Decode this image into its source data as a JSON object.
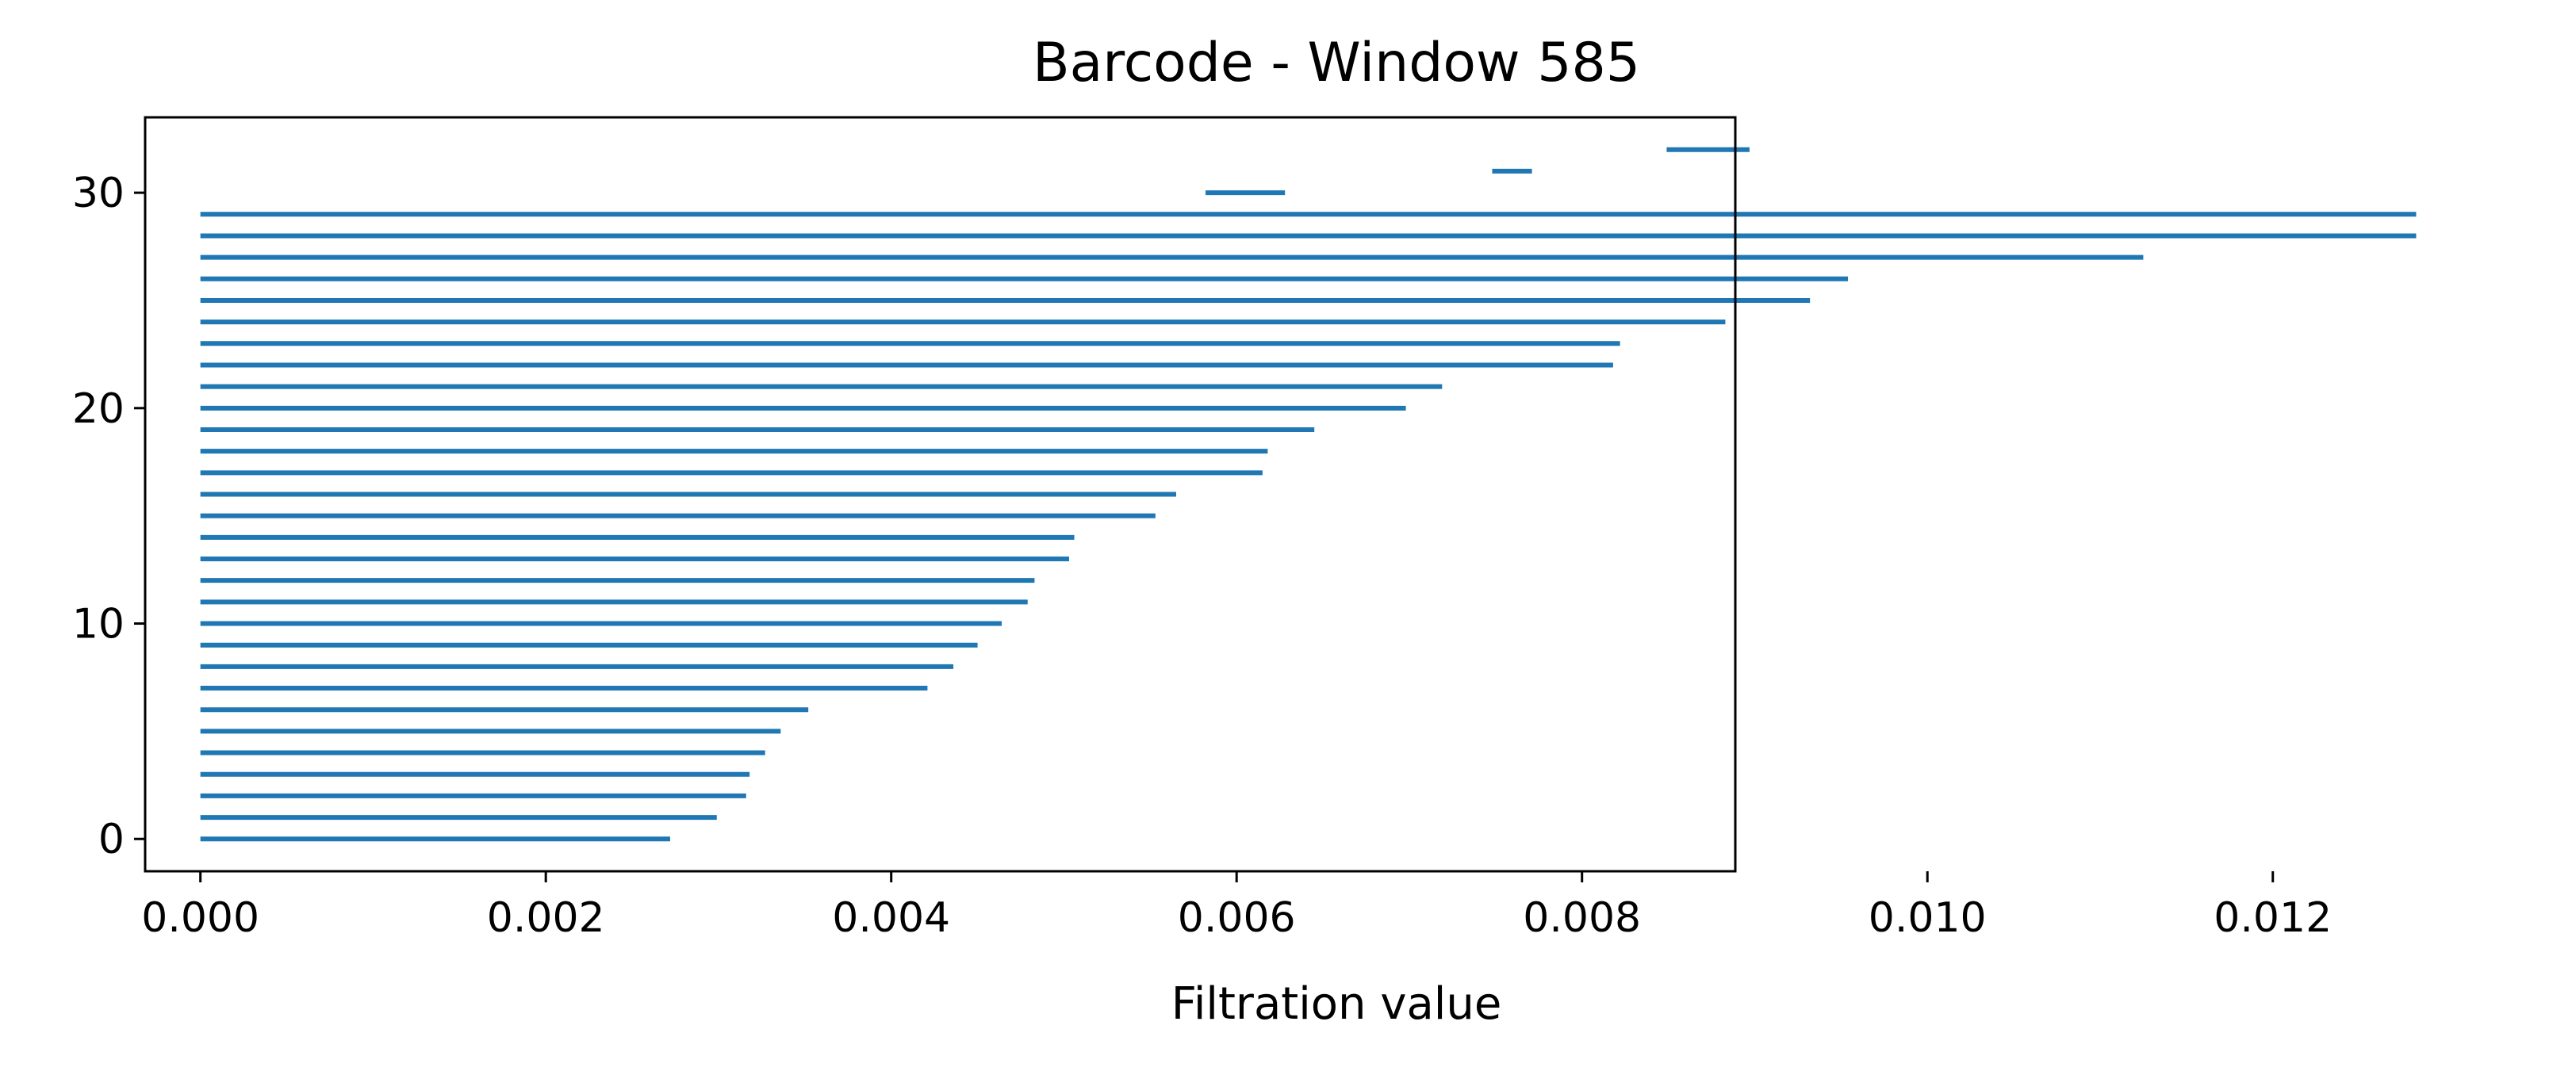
{
  "chart_data": {
    "type": "barcode",
    "title": "Barcode - Window 585",
    "xlabel": "Filtration value",
    "ylabel": "",
    "xlim": [
      -0.00032,
      0.01348
    ],
    "ylim": [
      -1.5,
      33.5
    ],
    "xticks": [
      0.0,
      0.002,
      0.004,
      0.006,
      0.008,
      0.01,
      0.012
    ],
    "xtick_labels": [
      "0.000",
      "0.002",
      "0.004",
      "0.006",
      "0.008",
      "0.010",
      "0.012"
    ],
    "yticks": [
      0,
      10,
      20,
      30
    ],
    "ytick_labels": [
      "0",
      "10",
      "20",
      "30"
    ],
    "grid": false,
    "legend": "none",
    "color": "#1f77b4",
    "bars": [
      {
        "index": 0,
        "birth": 0.0,
        "death": 0.00272
      },
      {
        "index": 1,
        "birth": 0.0,
        "death": 0.00299
      },
      {
        "index": 2,
        "birth": 0.0,
        "death": 0.00316
      },
      {
        "index": 3,
        "birth": 0.0,
        "death": 0.00318
      },
      {
        "index": 4,
        "birth": 0.0,
        "death": 0.00327
      },
      {
        "index": 5,
        "birth": 0.0,
        "death": 0.00336
      },
      {
        "index": 6,
        "birth": 0.0,
        "death": 0.00352
      },
      {
        "index": 7,
        "birth": 0.0,
        "death": 0.00421
      },
      {
        "index": 8,
        "birth": 0.0,
        "death": 0.00436
      },
      {
        "index": 9,
        "birth": 0.0,
        "death": 0.0045
      },
      {
        "index": 10,
        "birth": 0.0,
        "death": 0.00464
      },
      {
        "index": 11,
        "birth": 0.0,
        "death": 0.00479
      },
      {
        "index": 12,
        "birth": 0.0,
        "death": 0.00483
      },
      {
        "index": 13,
        "birth": 0.0,
        "death": 0.00503
      },
      {
        "index": 14,
        "birth": 0.0,
        "death": 0.00506
      },
      {
        "index": 15,
        "birth": 0.0,
        "death": 0.00553
      },
      {
        "index": 16,
        "birth": 0.0,
        "death": 0.00565
      },
      {
        "index": 17,
        "birth": 0.0,
        "death": 0.00615
      },
      {
        "index": 18,
        "birth": 0.0,
        "death": 0.00618
      },
      {
        "index": 19,
        "birth": 0.0,
        "death": 0.00645
      },
      {
        "index": 20,
        "birth": 0.0,
        "death": 0.00698
      },
      {
        "index": 21,
        "birth": 0.0,
        "death": 0.00719
      },
      {
        "index": 22,
        "birth": 0.0,
        "death": 0.00818
      },
      {
        "index": 23,
        "birth": 0.0,
        "death": 0.00822
      },
      {
        "index": 24,
        "birth": 0.0,
        "death": 0.00883
      },
      {
        "index": 25,
        "birth": 0.0,
        "death": 0.00932
      },
      {
        "index": 26,
        "birth": 0.0,
        "death": 0.00954
      },
      {
        "index": 27,
        "birth": 0.0,
        "death": 0.01125
      },
      {
        "index": 28,
        "birth": 0.0,
        "death": 0.01283
      },
      {
        "index": 29,
        "birth": 0.0,
        "death": 0.01283
      },
      {
        "index": 30,
        "birth": 0.00582,
        "death": 0.00628
      },
      {
        "index": 31,
        "birth": 0.00748,
        "death": 0.00771
      },
      {
        "index": 32,
        "birth": 0.00849,
        "death": 0.00897
      }
    ]
  }
}
